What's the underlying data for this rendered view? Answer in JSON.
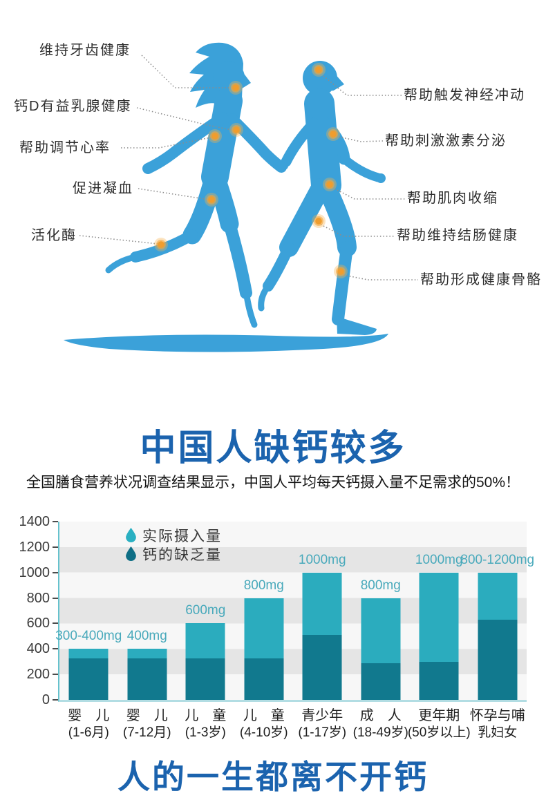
{
  "hero": {
    "left": [
      "维持牙齿健康",
      "钙D有益乳腺健康",
      "帮助调节心率",
      "促进凝血",
      "活化酶"
    ],
    "right": [
      "帮助触发神经冲动",
      "帮助刺激激素分泌",
      "帮助肌肉收缩",
      "帮助维持结肠健康",
      "帮助形成健康骨骼"
    ],
    "figure_color": "#3ba1d9",
    "dot_color": "#f09d2e"
  },
  "stats": {
    "title": "中国人缺钙较多",
    "subtitle": "全国膳食营养状况调查结果显示，中国人平均每天钙摄入量不足需求的50%！",
    "accent_color": "#1b63ae"
  },
  "chart_data": {
    "type": "bar",
    "stacked": true,
    "title": "",
    "xlabel": "",
    "ylabel": "",
    "ylim": [
      0,
      1400
    ],
    "yticks": [
      0,
      200,
      400,
      600,
      800,
      1000,
      1200,
      1400
    ],
    "grid": "horizontal striped bands every 200",
    "legend_position": "top-left inside plot",
    "legend": [
      {
        "label": "实际摄入量",
        "color": "#2bacbe"
      },
      {
        "label": "钙的缺乏量",
        "color": "#11798e"
      }
    ],
    "categories": [
      {
        "line1": "婴　儿",
        "line2": "(1-6月)"
      },
      {
        "line1": "婴　儿",
        "line2": "(7-12月)"
      },
      {
        "line1": "儿　童",
        "line2": "(1-3岁)"
      },
      {
        "line1": "儿　童",
        "line2": "(4-10岁)"
      },
      {
        "line1": "青少年",
        "line2": "(1-17岁)"
      },
      {
        "line1": "成　人",
        "line2": "(18-49岁)"
      },
      {
        "line1": "更年期",
        "line2": "(50岁以上)"
      },
      {
        "line1": "怀孕与哺",
        "line2": "乳妇女"
      }
    ],
    "bar_labels": [
      "300-400mg",
      "400mg",
      "600mg",
      "800mg",
      "1000mg",
      "800mg",
      "1000mg",
      "800-1200mg"
    ],
    "totals": [
      400,
      400,
      600,
      800,
      1000,
      800,
      1000,
      1000
    ],
    "series": [
      {
        "name": "钙的缺乏量",
        "position": "bottom",
        "color": "#11798e",
        "values": [
          325,
          325,
          325,
          325,
          510,
          290,
          300,
          630
        ]
      },
      {
        "name": "实际摄入量",
        "position": "top",
        "color": "#2bacbe",
        "values": [
          75,
          75,
          275,
          475,
          490,
          510,
          700,
          370
        ]
      }
    ]
  },
  "footer": {
    "title": "人的一生都离不开钙"
  }
}
